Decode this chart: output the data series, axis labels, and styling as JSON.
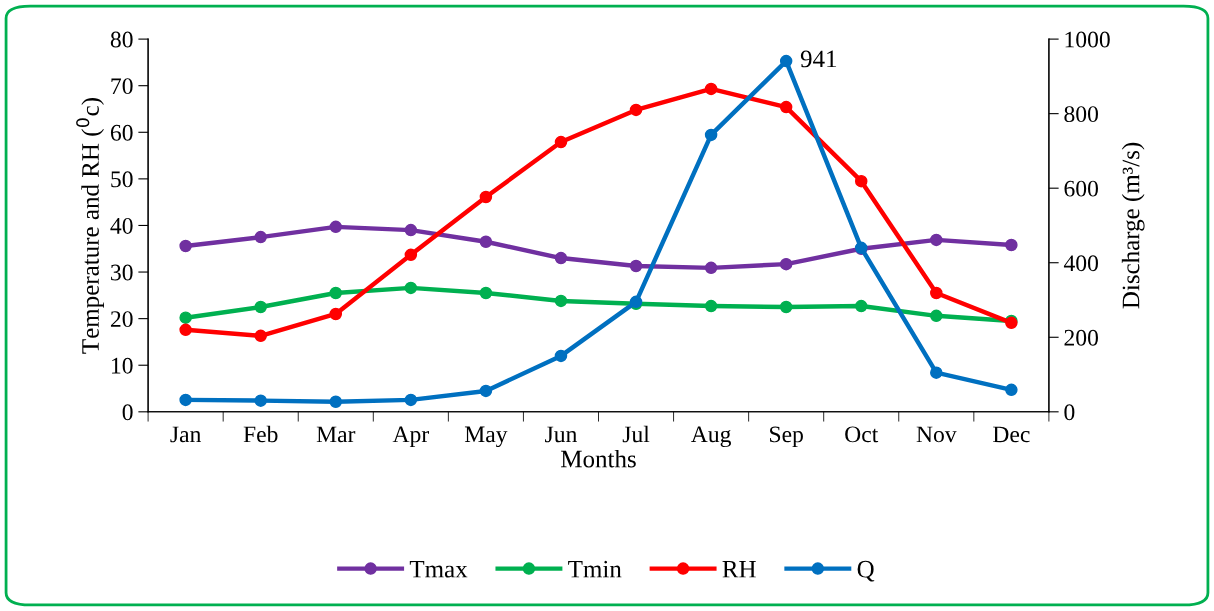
{
  "chart_data": {
    "type": "line",
    "xlabel": "Months",
    "ylabel": "Temperature and RH ($^{0}$c)",
    "y2label": "Discharge (m³/s)",
    "categories": [
      "Jan",
      "Feb",
      "Mar",
      "Apr",
      "May",
      "Jun",
      "Jul",
      "Aug",
      "Sep",
      "Oct",
      "Nov",
      "Dec"
    ],
    "series": [
      {
        "name": "Tmax",
        "color": "#7030a0",
        "values": [
          35.6,
          37.5,
          39.7,
          39,
          36.5,
          33,
          31.3,
          30.9,
          31.7,
          35,
          36.9,
          35.8
        ]
      },
      {
        "name": "Tmin",
        "color": "#00b050",
        "values": [
          20.2,
          22.5,
          25.5,
          26.6,
          25.5,
          23.8,
          23.2,
          22.7,
          22.5,
          22.7,
          20.6,
          19.5
        ]
      },
      {
        "name": "RH",
        "color": "#ff0000",
        "values": [
          17.6,
          16.3,
          21,
          33.7,
          46.1,
          57.9,
          64.8,
          69.3,
          65.4,
          49.5,
          25.5,
          19.1
        ]
      },
      {
        "name": "Q",
        "color": "#0070c0",
        "axis": "y2",
        "values": [
          32,
          30,
          27,
          32,
          56,
          150,
          295,
          743,
          941,
          440,
          105,
          59
        ],
        "value_labels": [
          null,
          null,
          null,
          null,
          null,
          null,
          null,
          null,
          "941",
          null,
          null,
          null
        ]
      }
    ],
    "ylim": [
      0,
      80
    ],
    "yticks": [
      0,
      10,
      20,
      30,
      40,
      50,
      60,
      70,
      80
    ],
    "y2lim": [
      0,
      1000
    ],
    "y2ticks": [
      0,
      200,
      400,
      600,
      800,
      1000
    ],
    "marker": "circle",
    "line_style": "solid",
    "grid": false,
    "legend": "bottom"
  }
}
